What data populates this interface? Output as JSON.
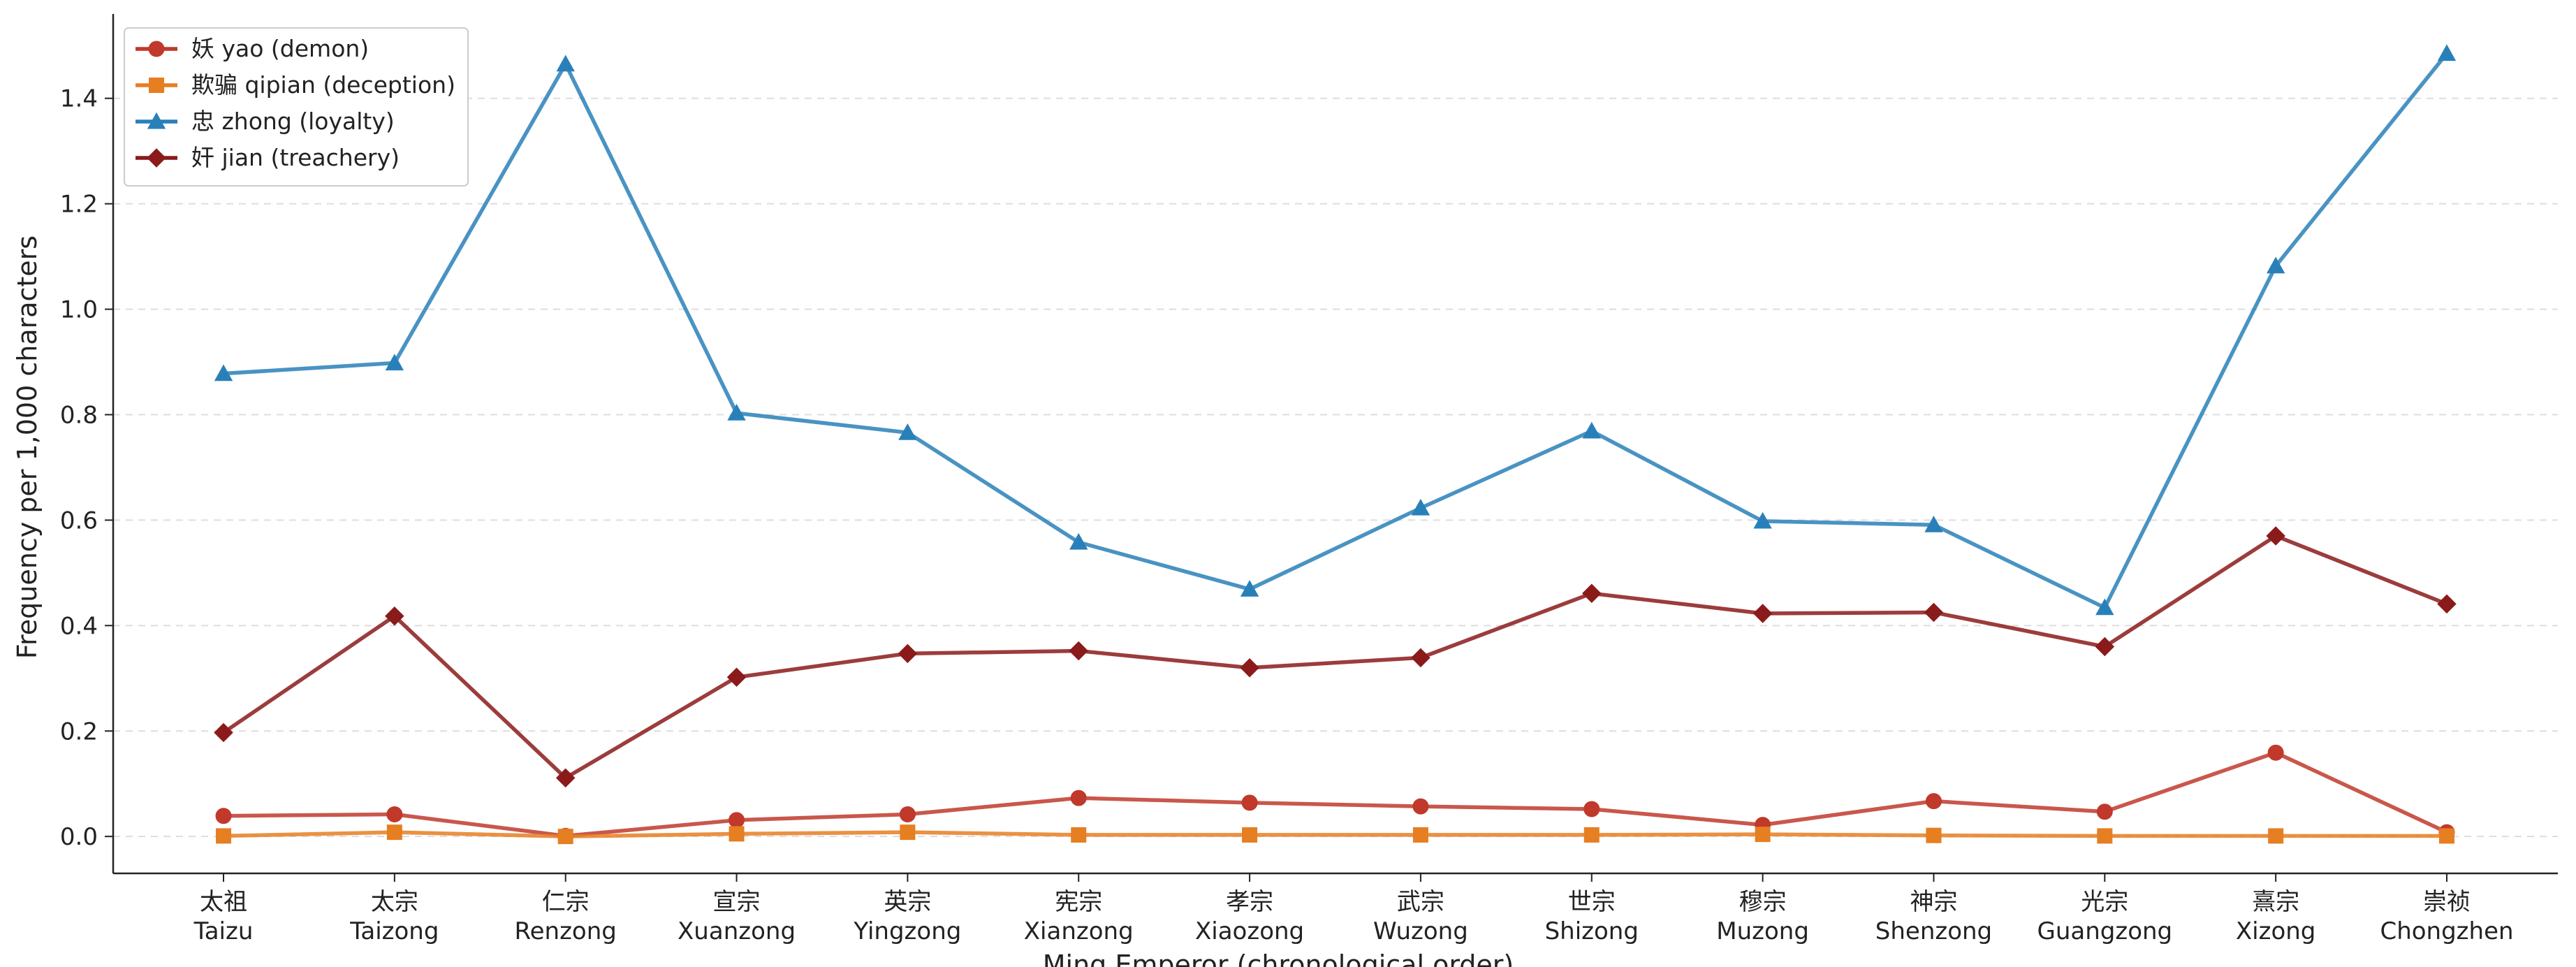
{
  "chart_data": {
    "type": "line",
    "title": "",
    "xlabel": "Ming Emperor (chronological order)",
    "ylabel": "Frequency per 1,000 characters",
    "categories": [
      {
        "zh": "太祖",
        "en": "Taizu"
      },
      {
        "zh": "太宗",
        "en": "Taizong"
      },
      {
        "zh": "仁宗",
        "en": "Renzong"
      },
      {
        "zh": "宣宗",
        "en": "Xuanzong"
      },
      {
        "zh": "英宗",
        "en": "Yingzong"
      },
      {
        "zh": "宪宗",
        "en": "Xianzong"
      },
      {
        "zh": "孝宗",
        "en": "Xiaozong"
      },
      {
        "zh": "武宗",
        "en": "Wuzong"
      },
      {
        "zh": "世宗",
        "en": "Shizong"
      },
      {
        "zh": "穆宗",
        "en": "Muzong"
      },
      {
        "zh": "神宗",
        "en": "Shenzong"
      },
      {
        "zh": "光宗",
        "en": "Guangzong"
      },
      {
        "zh": "熹宗",
        "en": "Xizong"
      },
      {
        "zh": "崇祯",
        "en": "Chongzhen"
      }
    ],
    "ylim": [
      -0.07,
      1.56
    ],
    "yticks": [
      0.0,
      0.2,
      0.4,
      0.6,
      0.8,
      1.0,
      1.2,
      1.4
    ],
    "ytick_labels": [
      "0.0",
      "0.2",
      "0.4",
      "0.6",
      "0.8",
      "1.0",
      "1.2",
      "1.4"
    ],
    "grid": "horizontal dashed",
    "legend_position": "top-left",
    "series": [
      {
        "name": "妖 yao (demon)",
        "color": "#c0392b",
        "marker": "circle",
        "values": [
          0.039,
          0.042,
          0.001,
          0.031,
          0.042,
          0.073,
          0.064,
          0.057,
          0.052,
          0.022,
          0.067,
          0.047,
          0.159,
          0.008
        ]
      },
      {
        "name": "欺骗 qipian (deception)",
        "color": "#e67e22",
        "marker": "square",
        "values": [
          0.001,
          0.008,
          0.0,
          0.005,
          0.008,
          0.003,
          0.003,
          0.003,
          0.003,
          0.004,
          0.002,
          0.001,
          0.001,
          0.001
        ]
      },
      {
        "name": "忠 zhong (loyalty)",
        "color": "#2980b9",
        "marker": "triangle",
        "values": [
          0.878,
          0.898,
          1.465,
          0.803,
          0.766,
          0.558,
          0.469,
          0.623,
          0.769,
          0.598,
          0.591,
          0.434,
          1.082,
          1.485
        ]
      },
      {
        "name": "奸 jian (treachery)",
        "color": "#8b1a1a",
        "marker": "diamond",
        "values": [
          0.197,
          0.418,
          0.111,
          0.302,
          0.347,
          0.352,
          0.32,
          0.339,
          0.461,
          0.423,
          0.425,
          0.36,
          0.57,
          0.441
        ]
      }
    ]
  }
}
